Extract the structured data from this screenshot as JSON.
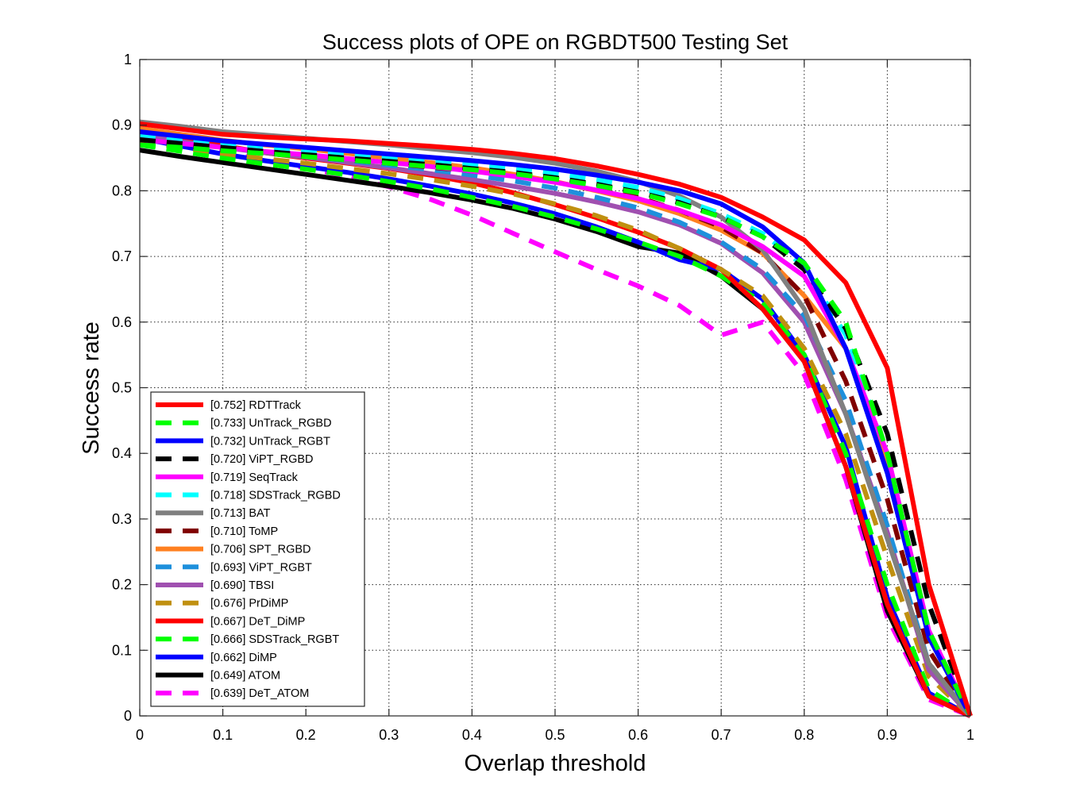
{
  "chart_data": {
    "type": "line",
    "title": "Success plots of OPE on RGBDT500 Testing Set",
    "xlabel": "Overlap threshold",
    "ylabel": "Success rate",
    "xlim": [
      0,
      1
    ],
    "ylim": [
      0,
      1
    ],
    "xticks": [
      "0",
      "0.1",
      "0.2",
      "0.3",
      "0.4",
      "0.5",
      "0.6",
      "0.7",
      "0.8",
      "0.9",
      "1"
    ],
    "yticks": [
      "0",
      "0.1",
      "0.2",
      "0.3",
      "0.4",
      "0.5",
      "0.6",
      "0.7",
      "0.8",
      "0.9",
      "1"
    ],
    "grid": true,
    "legend_position": "lower-left",
    "x": [
      0,
      0.05,
      0.1,
      0.15,
      0.2,
      0.25,
      0.3,
      0.35,
      0.4,
      0.45,
      0.5,
      0.55,
      0.6,
      0.65,
      0.7,
      0.75,
      0.8,
      0.85,
      0.9,
      0.95,
      1.0
    ],
    "series": [
      {
        "name": "[0.752] RDTTrack",
        "color": "#ff0000",
        "dash": "solid",
        "values": [
          0.902,
          0.894,
          0.886,
          0.882,
          0.879,
          0.876,
          0.872,
          0.868,
          0.863,
          0.857,
          0.849,
          0.838,
          0.825,
          0.81,
          0.79,
          0.76,
          0.725,
          0.66,
          0.53,
          0.2,
          0.0
        ]
      },
      {
        "name": "[0.733] UnTrack_RGBD",
        "color": "#00ff00",
        "dash": "dashed",
        "values": [
          0.87,
          0.866,
          0.861,
          0.857,
          0.852,
          0.847,
          0.842,
          0.837,
          0.832,
          0.826,
          0.818,
          0.808,
          0.797,
          0.78,
          0.76,
          0.73,
          0.69,
          0.6,
          0.4,
          0.13,
          0.0
        ]
      },
      {
        "name": "[0.732] UnTrack_RGBT",
        "color": "#0000ff",
        "dash": "solid",
        "values": [
          0.89,
          0.883,
          0.876,
          0.871,
          0.866,
          0.861,
          0.856,
          0.851,
          0.846,
          0.84,
          0.833,
          0.824,
          0.813,
          0.8,
          0.78,
          0.745,
          0.69,
          0.56,
          0.37,
          0.12,
          0.0
        ]
      },
      {
        "name": "[0.720] ViPT_RGBD",
        "color": "#000000",
        "dash": "dashed",
        "values": [
          0.878,
          0.872,
          0.866,
          0.86,
          0.855,
          0.85,
          0.845,
          0.84,
          0.834,
          0.828,
          0.82,
          0.81,
          0.798,
          0.782,
          0.76,
          0.73,
          0.68,
          0.59,
          0.43,
          0.17,
          0.0
        ]
      },
      {
        "name": "[0.719] SeqTrack",
        "color": "#ff00ff",
        "dash": "solid",
        "values": [
          0.878,
          0.872,
          0.866,
          0.86,
          0.855,
          0.849,
          0.843,
          0.837,
          0.83,
          0.822,
          0.813,
          0.801,
          0.788,
          0.77,
          0.748,
          0.715,
          0.67,
          0.56,
          0.4,
          0.13,
          0.0
        ]
      },
      {
        "name": "[0.718] SDSTrack_RGBD",
        "color": "#00ffff",
        "dash": "dashed",
        "values": [
          0.885,
          0.878,
          0.871,
          0.866,
          0.861,
          0.856,
          0.851,
          0.846,
          0.84,
          0.834,
          0.826,
          0.817,
          0.805,
          0.788,
          0.765,
          0.735,
          0.685,
          0.58,
          0.4,
          0.12,
          0.0
        ]
      },
      {
        "name": "[0.713] BAT",
        "color": "#808080",
        "dash": "solid",
        "values": [
          0.905,
          0.898,
          0.89,
          0.885,
          0.88,
          0.875,
          0.87,
          0.864,
          0.858,
          0.851,
          0.842,
          0.83,
          0.814,
          0.792,
          0.76,
          0.71,
          0.62,
          0.46,
          0.27,
          0.08,
          0.0
        ]
      },
      {
        "name": "[0.710] ToMP",
        "color": "#800000",
        "dash": "dashed",
        "values": [
          0.875,
          0.869,
          0.862,
          0.857,
          0.852,
          0.847,
          0.842,
          0.836,
          0.83,
          0.823,
          0.814,
          0.803,
          0.79,
          0.77,
          0.745,
          0.705,
          0.64,
          0.51,
          0.33,
          0.1,
          0.0
        ]
      },
      {
        "name": "[0.706] SPT_RGBD",
        "color": "#ff8020",
        "dash": "solid",
        "values": [
          0.895,
          0.886,
          0.877,
          0.87,
          0.864,
          0.857,
          0.85,
          0.843,
          0.835,
          0.825,
          0.814,
          0.8,
          0.785,
          0.765,
          0.74,
          0.705,
          0.64,
          0.56,
          0.38,
          0.12,
          0.0
        ]
      },
      {
        "name": "[0.693] ViPT_RGBT",
        "color": "#1e90dc",
        "dash": "dashed",
        "values": [
          0.88,
          0.872,
          0.864,
          0.858,
          0.852,
          0.846,
          0.839,
          0.832,
          0.824,
          0.815,
          0.804,
          0.79,
          0.774,
          0.752,
          0.722,
          0.68,
          0.61,
          0.48,
          0.29,
          0.08,
          0.0
        ]
      },
      {
        "name": "[0.690] TBSI",
        "color": "#a050b0",
        "dash": "solid",
        "values": [
          0.885,
          0.875,
          0.866,
          0.858,
          0.851,
          0.843,
          0.835,
          0.826,
          0.817,
          0.807,
          0.796,
          0.783,
          0.768,
          0.748,
          0.72,
          0.675,
          0.6,
          0.46,
          0.28,
          0.07,
          0.0
        ]
      },
      {
        "name": "[0.676] PrDiMP",
        "color": "#c09010",
        "dash": "dashed",
        "values": [
          0.875,
          0.866,
          0.857,
          0.849,
          0.842,
          0.834,
          0.826,
          0.817,
          0.807,
          0.795,
          0.78,
          0.762,
          0.74,
          0.712,
          0.68,
          0.64,
          0.56,
          0.43,
          0.24,
          0.06,
          0.0
        ]
      },
      {
        "name": "[0.667] DeT_DiMP",
        "color": "#ff0000",
        "dash": "solid",
        "values": [
          0.895,
          0.882,
          0.869,
          0.858,
          0.85,
          0.842,
          0.834,
          0.824,
          0.812,
          0.797,
          0.779,
          0.759,
          0.737,
          0.712,
          0.68,
          0.62,
          0.54,
          0.38,
          0.17,
          0.03,
          0.0
        ]
      },
      {
        "name": "[0.666] SDSTrack_RGBT",
        "color": "#00ff00",
        "dash": "dashed",
        "values": [
          0.87,
          0.86,
          0.85,
          0.841,
          0.833,
          0.824,
          0.814,
          0.803,
          0.79,
          0.776,
          0.76,
          0.742,
          0.722,
          0.7,
          0.67,
          0.63,
          0.55,
          0.4,
          0.2,
          0.04,
          0.0
        ]
      },
      {
        "name": "[0.662] DiMP",
        "color": "#0000ff",
        "dash": "solid",
        "values": [
          0.88,
          0.868,
          0.856,
          0.846,
          0.837,
          0.828,
          0.818,
          0.807,
          0.795,
          0.781,
          0.765,
          0.745,
          0.722,
          0.695,
          0.68,
          0.635,
          0.55,
          0.41,
          0.18,
          0.035,
          0.0
        ]
      },
      {
        "name": "[0.649] ATOM",
        "color": "#000000",
        "dash": "solid",
        "values": [
          0.862,
          0.852,
          0.843,
          0.834,
          0.825,
          0.816,
          0.807,
          0.797,
          0.786,
          0.773,
          0.757,
          0.738,
          0.715,
          0.705,
          0.67,
          0.62,
          0.54,
          0.38,
          0.16,
          0.03,
          0.0
        ]
      },
      {
        "name": "[0.639] DeT_ATOM",
        "color": "#ff00ff",
        "dash": "dashed",
        "values": [
          0.885,
          0.872,
          0.859,
          0.847,
          0.835,
          0.822,
          0.806,
          0.787,
          0.763,
          0.735,
          0.707,
          0.68,
          0.655,
          0.625,
          0.58,
          0.6,
          0.52,
          0.36,
          0.15,
          0.025,
          0.0
        ]
      }
    ]
  }
}
